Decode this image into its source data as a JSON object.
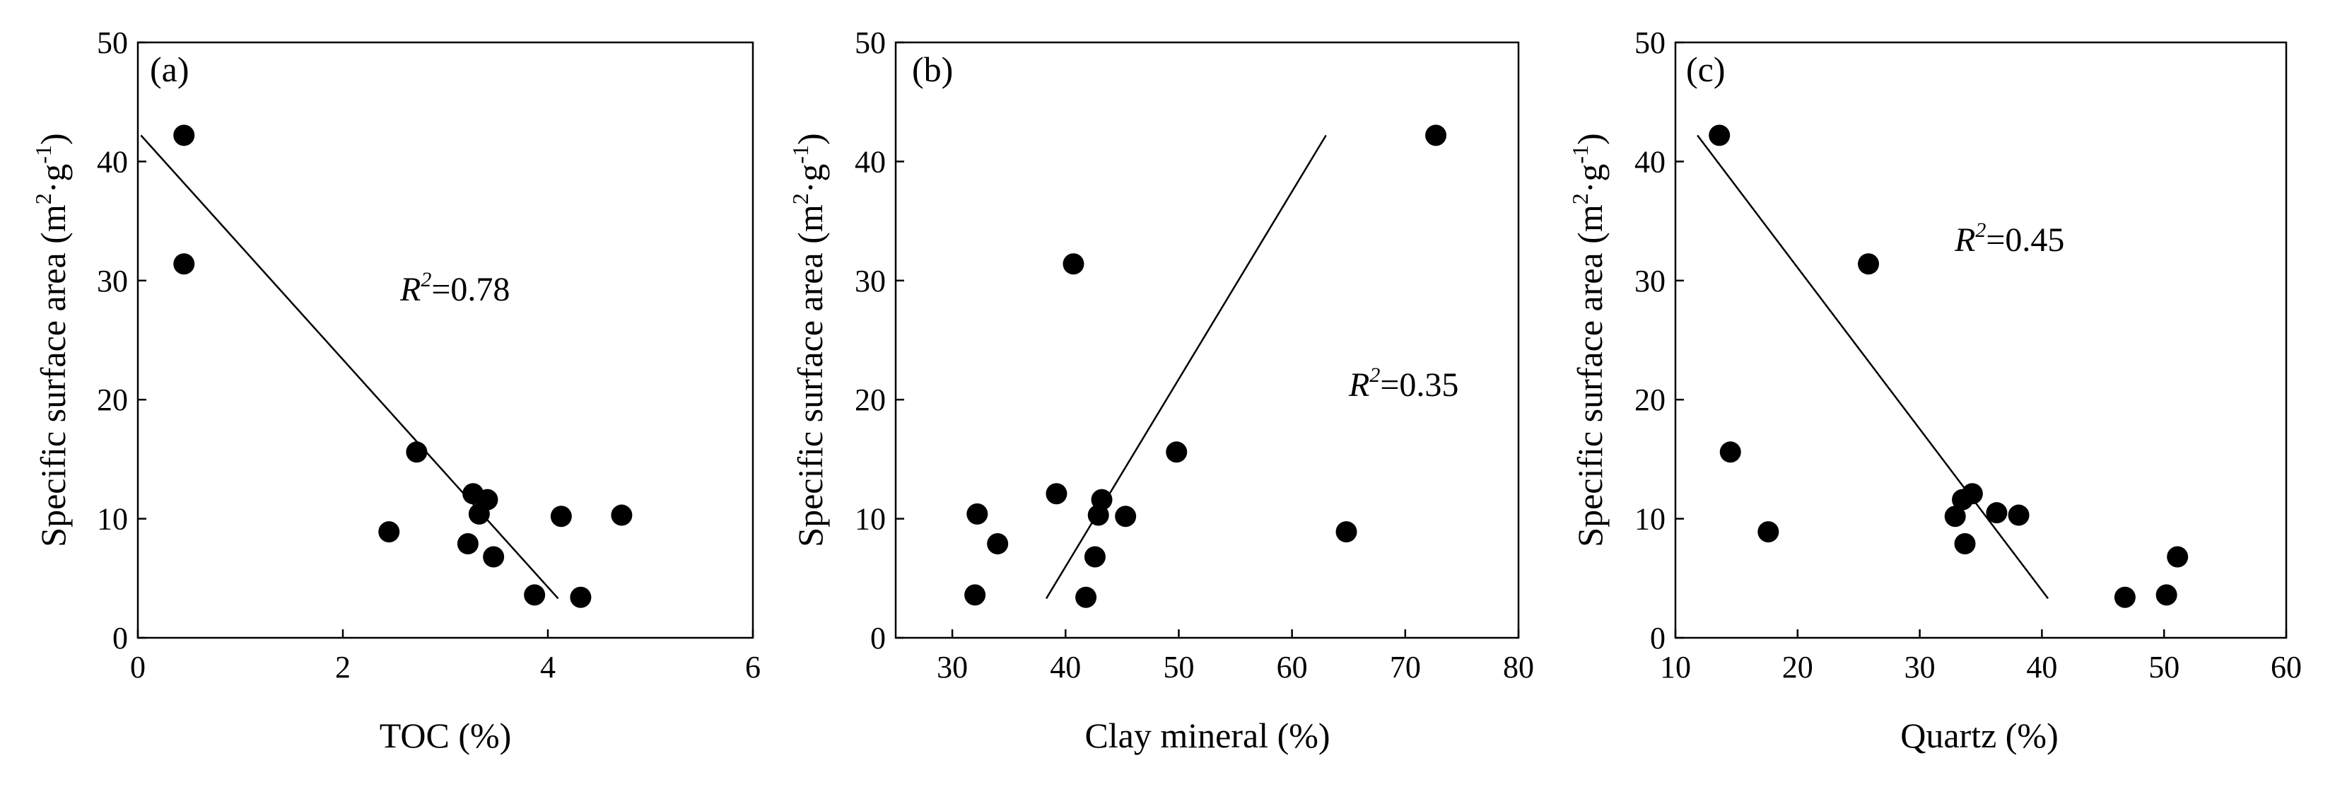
{
  "figure": {
    "ylabel_main": "Specific surface area (m",
    "ylabel_m_exp": "2",
    "ylabel_mid": "·g",
    "ylabel_g_exp": "-1",
    "ylabel_end": ")"
  },
  "chart_data": [
    {
      "type": "scatter",
      "panel_label": "(a)",
      "xlabel": "TOC (%)",
      "ylabel": "Specific surface area (m2·g-1)",
      "xlim": [
        0,
        6
      ],
      "ylim": [
        0,
        50
      ],
      "xticks": [
        0,
        2,
        4,
        6
      ],
      "yticks": [
        0,
        10,
        20,
        30,
        40,
        50
      ],
      "xtick_labels": [
        "0",
        "2",
        "4",
        "6"
      ],
      "ytick_labels": [
        "0",
        "10",
        "20",
        "30",
        "40",
        "50"
      ],
      "points": [
        {
          "x": 0.45,
          "y": 42.2
        },
        {
          "x": 0.45,
          "y": 31.4
        },
        {
          "x": 2.45,
          "y": 8.9
        },
        {
          "x": 2.72,
          "y": 15.6
        },
        {
          "x": 3.22,
          "y": 7.9
        },
        {
          "x": 3.27,
          "y": 12.1
        },
        {
          "x": 3.33,
          "y": 10.4
        },
        {
          "x": 3.41,
          "y": 11.6
        },
        {
          "x": 3.47,
          "y": 6.8
        },
        {
          "x": 3.87,
          "y": 3.6
        },
        {
          "x": 4.13,
          "y": 10.2
        },
        {
          "x": 4.32,
          "y": 3.4
        },
        {
          "x": 4.72,
          "y": 10.3
        }
      ],
      "fit_line": {
        "x": [
          0.03,
          4.1
        ],
        "y": [
          42.2,
          3.3
        ]
      },
      "r2_label": "R",
      "r2_exp": "2",
      "r2_value": "=0.78",
      "grid": false
    },
    {
      "type": "scatter",
      "panel_label": "(b)",
      "xlabel": "Clay mineral (%)",
      "ylabel": "Specific surface area (m2·g-1)",
      "xlim": [
        25,
        80
      ],
      "ylim": [
        0,
        50
      ],
      "xticks": [
        30,
        40,
        50,
        60,
        70,
        80
      ],
      "yticks": [
        0,
        10,
        20,
        30,
        40,
        50
      ],
      "xtick_labels": [
        "30",
        "40",
        "50",
        "60",
        "70",
        "80"
      ],
      "ytick_labels": [
        "0",
        "10",
        "20",
        "30",
        "40",
        "50"
      ],
      "points": [
        {
          "x": 32.0,
          "y": 3.6
        },
        {
          "x": 32.2,
          "y": 10.4
        },
        {
          "x": 34.0,
          "y": 7.9
        },
        {
          "x": 39.2,
          "y": 12.1
        },
        {
          "x": 40.7,
          "y": 31.4
        },
        {
          "x": 41.8,
          "y": 3.4
        },
        {
          "x": 42.6,
          "y": 6.8
        },
        {
          "x": 42.9,
          "y": 10.3
        },
        {
          "x": 43.2,
          "y": 11.6
        },
        {
          "x": 45.3,
          "y": 10.2
        },
        {
          "x": 49.8,
          "y": 15.6
        },
        {
          "x": 64.8,
          "y": 8.9
        },
        {
          "x": 72.7,
          "y": 42.2
        }
      ],
      "fit_line": {
        "x": [
          38.3,
          63.0
        ],
        "y": [
          3.3,
          42.2
        ]
      },
      "r2_label": "R",
      "r2_exp": "2",
      "r2_value": "=0.35",
      "grid": false
    },
    {
      "type": "scatter",
      "panel_label": "(c)",
      "xlabel": "Quartz (%)",
      "ylabel": "Specific surface area (m2·g-1)",
      "xlim": [
        10,
        60
      ],
      "ylim": [
        0,
        50
      ],
      "xticks": [
        10,
        20,
        30,
        40,
        50,
        60
      ],
      "yticks": [
        0,
        10,
        20,
        30,
        40,
        50
      ],
      "xtick_labels": [
        "10",
        "20",
        "30",
        "40",
        "50",
        "60"
      ],
      "ytick_labels": [
        "0",
        "10",
        "20",
        "30",
        "40",
        "50"
      ],
      "points": [
        {
          "x": 13.6,
          "y": 42.2
        },
        {
          "x": 14.5,
          "y": 15.6
        },
        {
          "x": 17.6,
          "y": 8.9
        },
        {
          "x": 25.8,
          "y": 31.4
        },
        {
          "x": 32.9,
          "y": 10.2
        },
        {
          "x": 33.5,
          "y": 11.6
        },
        {
          "x": 33.7,
          "y": 7.9
        },
        {
          "x": 34.3,
          "y": 12.1
        },
        {
          "x": 36.3,
          "y": 10.5
        },
        {
          "x": 38.1,
          "y": 10.3
        },
        {
          "x": 46.8,
          "y": 3.4
        },
        {
          "x": 50.2,
          "y": 3.6
        },
        {
          "x": 51.1,
          "y": 6.8
        }
      ],
      "fit_line": {
        "x": [
          11.8,
          40.5
        ],
        "y": [
          42.2,
          3.3
        ]
      },
      "r2_label": "R",
      "r2_exp": "2",
      "r2_value": "=0.45",
      "grid": false
    }
  ]
}
